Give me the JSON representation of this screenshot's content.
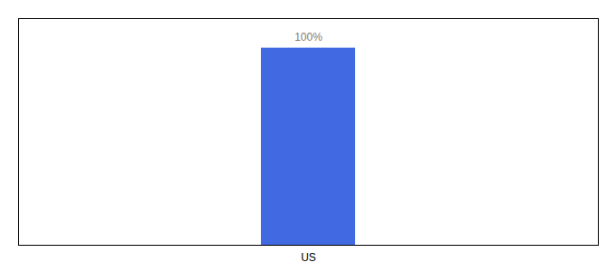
{
  "chart_data": {
    "type": "bar",
    "categories": [
      "US"
    ],
    "values": [
      100
    ],
    "value_labels": [
      "100%"
    ],
    "color": "#4169e1",
    "ylim": [
      0,
      115
    ],
    "yticks": [],
    "grid": false,
    "data_labels": true,
    "tick_labels": "x"
  }
}
